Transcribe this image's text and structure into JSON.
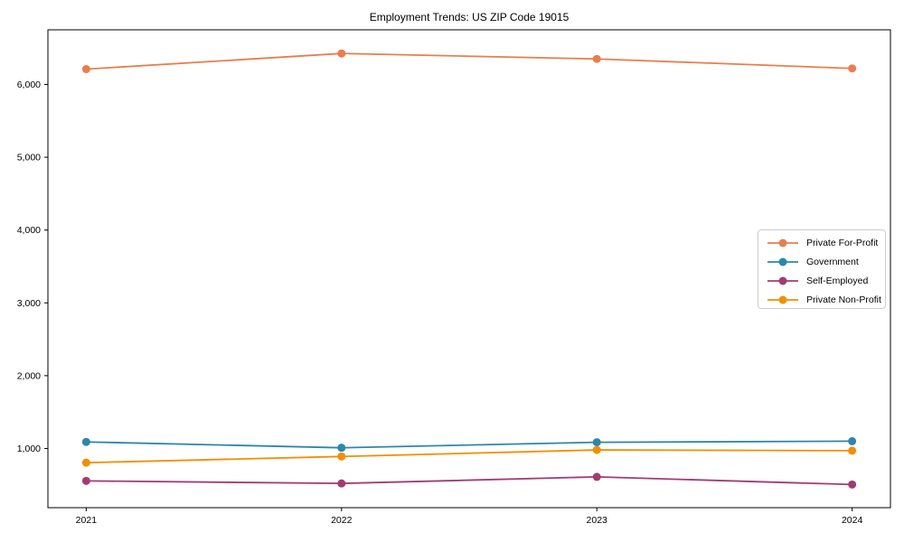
{
  "chart_data": {
    "type": "line",
    "title": "Employment Trends: US ZIP Code 19015",
    "xlabel": "",
    "ylabel": "",
    "x": [
      2021,
      2022,
      2023,
      2024
    ],
    "x_tick_labels": [
      "2021",
      "2022",
      "2023",
      "2024"
    ],
    "y_ticks": [
      1000,
      2000,
      3000,
      4000,
      5000,
      6000
    ],
    "y_tick_labels": [
      "1,000",
      "2,000",
      "3,000",
      "4,000",
      "5,000",
      "6,000"
    ],
    "xlim": [
      2020.85,
      2024.15
    ],
    "ylim": [
      187,
      6750
    ],
    "grid": false,
    "legend_position": "center right",
    "series": [
      {
        "name": "Private For-Profit",
        "color": "#E87E4D",
        "values": [
          6210,
          6425,
          6350,
          6220
        ]
      },
      {
        "name": "Government",
        "color": "#2E86AB",
        "values": [
          1090,
          1010,
          1085,
          1100
        ]
      },
      {
        "name": "Self-Employed",
        "color": "#A23B72",
        "values": [
          555,
          520,
          610,
          505
        ]
      },
      {
        "name": "Private Non-Profit",
        "color": "#F18F01",
        "values": [
          805,
          890,
          980,
          970
        ]
      }
    ]
  }
}
